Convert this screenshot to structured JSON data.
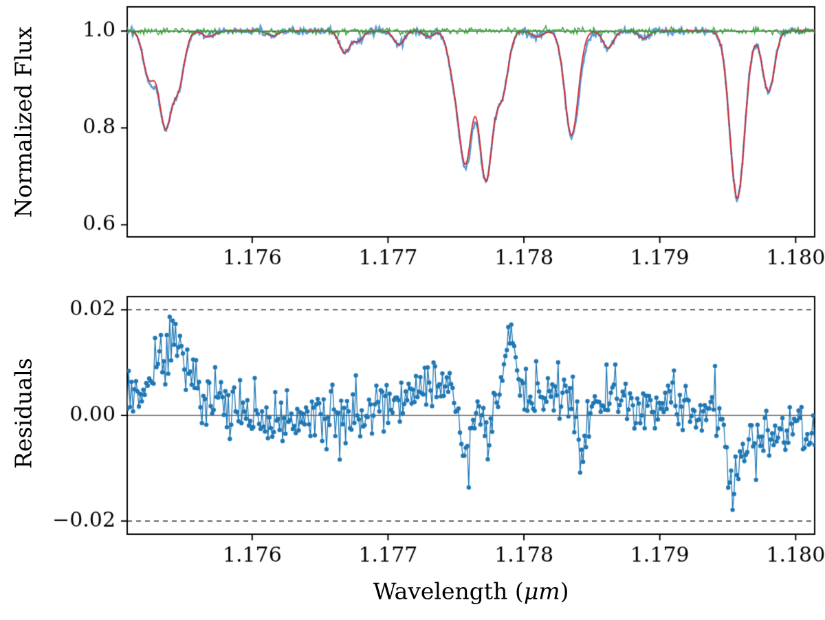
{
  "figure": {
    "background": "#ffffff",
    "seed": 20240817,
    "axis_color": "#000000",
    "xlabel_prefix": "Wavelength (",
    "xlabel_math": "μm",
    "xlabel_suffix": ")"
  },
  "chart_data": [
    {
      "type": "line",
      "panel": "normalized-flux",
      "title": "",
      "ylabel": "Normalized Flux",
      "xlabel": "",
      "xlim": [
        1.17508,
        1.18014
      ],
      "ylim": [
        0.575,
        1.05
      ],
      "xticks": [
        1.176,
        1.177,
        1.178,
        1.179,
        1.18
      ],
      "xtick_labels": [
        "1.176",
        "1.177",
        "1.178",
        "1.179",
        "1.180"
      ],
      "yticks": [
        1.0,
        0.8,
        0.6
      ],
      "ytick_labels": [
        "1.0",
        "0.8",
        "0.6"
      ],
      "grid": false,
      "legend": "none",
      "continuum_level": 1.0,
      "zero_line": {
        "y": 1.0,
        "style": "solid",
        "color": "#000000"
      },
      "n_samples": 620,
      "series": [
        {
          "name": "observed-spectrum",
          "color": "#5b9bd5",
          "noise_sigma": 0.004,
          "marker_radius": 1.6,
          "line_width": 2.6
        },
        {
          "name": "best-fit-model",
          "color": "#d62728",
          "line_width": 1.8
        },
        {
          "name": "flat-residual-trace",
          "color": "#2ca02c",
          "level": 1.0,
          "noise_sigma": 0.0032,
          "line_width": 1.4
        }
      ],
      "absorption_lines": [
        {
          "center": 1.17524,
          "depth": 0.095,
          "sigma": 4.2e-05
        },
        {
          "center": 1.17536,
          "depth": 0.195,
          "sigma": 4.6e-05
        },
        {
          "center": 1.17546,
          "depth": 0.105,
          "sigma": 4.2e-05
        },
        {
          "center": 1.17568,
          "depth": 0.012,
          "sigma": 4e-05
        },
        {
          "center": 1.17615,
          "depth": 0.01,
          "sigma": 4e-05
        },
        {
          "center": 1.17668,
          "depth": 0.045,
          "sigma": 3.8e-05
        },
        {
          "center": 1.17678,
          "depth": 0.02,
          "sigma": 3.6e-05
        },
        {
          "center": 1.17708,
          "depth": 0.028,
          "sigma": 3.8e-05
        },
        {
          "center": 1.1773,
          "depth": 0.012,
          "sigma": 3.6e-05
        },
        {
          "center": 1.17748,
          "depth": 0.07,
          "sigma": 4.2e-05
        },
        {
          "center": 1.17757,
          "depth": 0.265,
          "sigma": 4.8e-05
        },
        {
          "center": 1.17772,
          "depth": 0.305,
          "sigma": 5e-05
        },
        {
          "center": 1.17784,
          "depth": 0.125,
          "sigma": 4.4e-05
        },
        {
          "center": 1.1781,
          "depth": 0.012,
          "sigma": 4e-05
        },
        {
          "center": 1.17835,
          "depth": 0.215,
          "sigma": 5e-05
        },
        {
          "center": 1.17862,
          "depth": 0.035,
          "sigma": 3.8e-05
        },
        {
          "center": 1.17888,
          "depth": 0.015,
          "sigma": 3.8e-05
        },
        {
          "center": 1.17957,
          "depth": 0.345,
          "sigma": 5.5e-05
        },
        {
          "center": 1.1798,
          "depth": 0.125,
          "sigma": 4.4e-05
        }
      ],
      "observed_extra_lines": [
        {
          "center": 1.17527,
          "depth": 0.01,
          "sigma": 4e-05
        },
        {
          "center": 1.17762,
          "depth": 0.015,
          "sigma": 5e-05
        },
        {
          "center": 1.17843,
          "depth": 0.02,
          "sigma": 4e-05
        }
      ]
    },
    {
      "type": "scatter",
      "panel": "residuals",
      "title": "",
      "ylabel": "Residuals",
      "xlabel": "Wavelength (μm)",
      "xlim": [
        1.17508,
        1.18014
      ],
      "ylim": [
        -0.0225,
        0.0225
      ],
      "xticks": [
        1.176,
        1.177,
        1.178,
        1.179,
        1.18
      ],
      "xtick_labels": [
        "1.176",
        "1.177",
        "1.178",
        "1.179",
        "1.180"
      ],
      "yticks": [
        0.02,
        0.0,
        -0.02
      ],
      "ytick_labels": [
        "0.02",
        "0.00",
        "−0.02"
      ],
      "grid": false,
      "legend": "none",
      "color": "#1f77b4",
      "marker_radius": 3.2,
      "line_width": 1.3,
      "n_points": 470,
      "noise_sigma": 0.0027,
      "hlines": [
        {
          "y": 0.0,
          "style": "solid",
          "color": "#000000"
        },
        {
          "y": 0.02,
          "style": "dashed",
          "color": "#000000"
        },
        {
          "y": -0.02,
          "style": "dashed",
          "color": "#000000"
        }
      ],
      "trend": [
        [
          1.17508,
          0.004
        ],
        [
          1.1753,
          0.008
        ],
        [
          1.17542,
          0.012
        ],
        [
          1.17552,
          0.008
        ],
        [
          1.17565,
          0.004
        ],
        [
          1.1758,
          0.002
        ],
        [
          1.176,
          0.0
        ],
        [
          1.17625,
          -0.001
        ],
        [
          1.1765,
          0.0
        ],
        [
          1.17668,
          -0.001
        ],
        [
          1.17685,
          0.001
        ],
        [
          1.177,
          0.002
        ],
        [
          1.17715,
          0.004
        ],
        [
          1.1773,
          0.005
        ],
        [
          1.17745,
          0.005
        ],
        [
          1.1776,
          0.003
        ],
        [
          1.17775,
          0.004
        ],
        [
          1.17788,
          0.006
        ],
        [
          1.178,
          0.005
        ],
        [
          1.17815,
          0.004
        ],
        [
          1.1783,
          0.004
        ],
        [
          1.1785,
          0.003
        ],
        [
          1.17865,
          0.003
        ],
        [
          1.17885,
          0.002
        ],
        [
          1.179,
          0.002
        ],
        [
          1.1792,
          0.001
        ],
        [
          1.1794,
          0.001
        ],
        [
          1.17952,
          -0.002
        ],
        [
          1.17962,
          -0.004
        ],
        [
          1.17975,
          -0.004
        ],
        [
          1.1799,
          -0.004
        ],
        [
          1.18014,
          -0.003
        ]
      ],
      "features": [
        {
          "center": 1.17541,
          "amplitude": 0.004,
          "sigma": 6e-05
        },
        {
          "center": 1.17757,
          "amplitude": -0.016,
          "sigma": 3.5e-05
        },
        {
          "center": 1.17772,
          "amplitude": -0.011,
          "sigma": 3e-05
        },
        {
          "center": 1.1779,
          "amplitude": 0.011,
          "sigma": 2.8e-05
        },
        {
          "center": 1.17843,
          "amplitude": -0.015,
          "sigma": 2.8e-05
        },
        {
          "center": 1.17955,
          "amplitude": -0.012,
          "sigma": 5e-05
        }
      ]
    }
  ]
}
